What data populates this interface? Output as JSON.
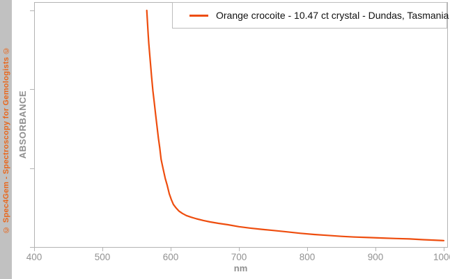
{
  "watermark": {
    "text": "© Spec4Gem - Spectroscopy for Gemologists ©"
  },
  "legend": {
    "label": "Orange crocoite - 10.47 ct crystal - Dundas, Tasmania"
  },
  "axes": {
    "x_label": "nm",
    "y_label": "ABSORBANCE",
    "x_tick_labels": [
      "400",
      "500",
      "600",
      "700",
      "800",
      "900",
      "1000"
    ]
  },
  "colors": {
    "curve": "#ee4d0e",
    "watermark_bg": "#c1c1c1",
    "watermark_text": "#e8671c",
    "axis": "#b3b3b3",
    "tick_label": "#919191",
    "legend_border": "#bdbdbd",
    "legend_text": "#111111",
    "background": "#ffffff"
  },
  "chart_data": {
    "type": "line",
    "title": "",
    "xlabel": "nm",
    "ylabel": "ABSORBANCE",
    "xlim": [
      400,
      1000
    ],
    "ylim": [
      0,
      1
    ],
    "x_ticks": [
      400,
      500,
      600,
      700,
      800,
      900,
      1000
    ],
    "y_ticks": [
      0,
      0.3333,
      0.6667,
      1
    ],
    "y_tick_labels": [
      "",
      "",
      "",
      ""
    ],
    "grid": false,
    "legend_position": "top-right",
    "series": [
      {
        "name": "Orange crocoite - 10.47 ct crystal - Dundas, Tasmania",
        "color": "#ee4d0e",
        "points": [
          [
            565,
            1.0
          ],
          [
            566,
            0.95
          ],
          [
            567,
            0.9
          ],
          [
            568,
            0.86
          ],
          [
            570,
            0.79
          ],
          [
            572,
            0.72
          ],
          [
            574,
            0.66
          ],
          [
            576,
            0.61
          ],
          [
            578,
            0.56
          ],
          [
            580,
            0.51
          ],
          [
            582,
            0.46
          ],
          [
            584,
            0.42
          ],
          [
            586,
            0.37
          ],
          [
            589,
            0.33
          ],
          [
            592,
            0.29
          ],
          [
            595,
            0.26
          ],
          [
            598,
            0.225
          ],
          [
            601,
            0.2
          ],
          [
            604,
            0.18
          ],
          [
            608,
            0.165
          ],
          [
            612,
            0.152
          ],
          [
            617,
            0.142
          ],
          [
            623,
            0.133
          ],
          [
            630,
            0.126
          ],
          [
            638,
            0.119
          ],
          [
            648,
            0.112
          ],
          [
            658,
            0.106
          ],
          [
            670,
            0.1
          ],
          [
            684,
            0.094
          ],
          [
            700,
            0.086
          ],
          [
            716,
            0.08
          ],
          [
            732,
            0.075
          ],
          [
            750,
            0.07
          ],
          [
            770,
            0.064
          ],
          [
            790,
            0.058
          ],
          [
            810,
            0.053
          ],
          [
            830,
            0.049
          ],
          [
            850,
            0.045
          ],
          [
            870,
            0.042
          ],
          [
            890,
            0.04
          ],
          [
            910,
            0.038
          ],
          [
            930,
            0.036
          ],
          [
            950,
            0.034
          ],
          [
            970,
            0.031
          ],
          [
            985,
            0.029
          ],
          [
            1000,
            0.027
          ]
        ]
      }
    ]
  }
}
